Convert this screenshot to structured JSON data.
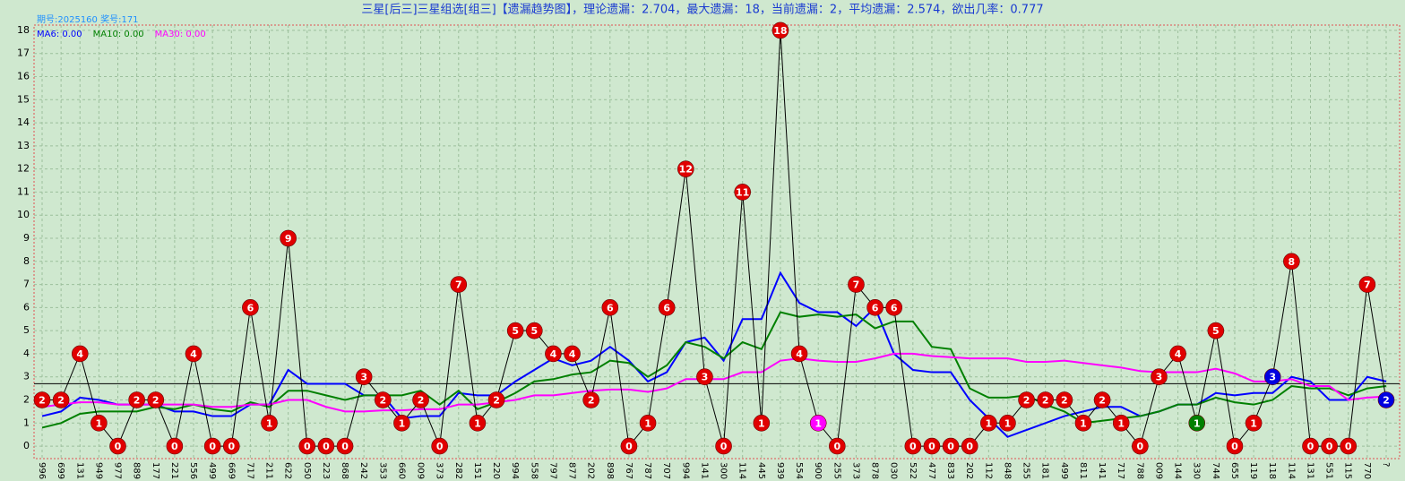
{
  "chart_data": {
    "type": "line",
    "title": "三星[后三]三星组选[组三]【遗漏趋势图】，理论遗漏：2.704，最大遗漏：18，当前遗漏：2，平均遗漏：2.574，欲出几率：0.777",
    "subtitle": "期号:2025160 奖号:171",
    "categories": [
      "996",
      "699",
      "131",
      "949",
      "977",
      "889",
      "177",
      "221",
      "556",
      "499",
      "669",
      "717",
      "211",
      "622",
      "050",
      "223",
      "868",
      "242",
      "353",
      "660",
      "009",
      "373",
      "282",
      "151",
      "220",
      "994",
      "558",
      "797",
      "877",
      "202",
      "898",
      "767",
      "787",
      "707",
      "994",
      "141",
      "300",
      "114",
      "445",
      "939",
      "554",
      "900",
      "255",
      "373",
      "878",
      "030",
      "522",
      "477",
      "833",
      "202",
      "112",
      "848",
      "255",
      "181",
      "499",
      "811",
      "141",
      "717",
      "788",
      "009",
      "144",
      "330",
      "744",
      "655",
      "119",
      "118",
      "114",
      "131",
      "551",
      "115",
      "770",
      "?"
    ],
    "values": [
      2,
      2,
      4,
      1,
      0,
      2,
      2,
      0,
      4,
      0,
      0,
      6,
      1,
      9,
      0,
      0,
      0,
      3,
      2,
      1,
      2,
      0,
      7,
      1,
      2,
      5,
      5,
      4,
      4,
      2,
      6,
      0,
      1,
      6,
      12,
      3,
      0,
      11,
      1,
      18,
      4,
      1,
      0,
      7,
      6,
      6,
      0,
      0,
      0,
      0,
      1,
      1,
      2,
      2,
      2,
      1,
      2,
      1,
      0,
      3,
      4,
      1,
      5,
      0,
      1,
      3,
      8,
      0,
      0,
      0,
      7,
      2
    ],
    "point_colors": [
      "#e00000",
      "#e00000",
      "#e00000",
      "#e00000",
      "#e00000",
      "#e00000",
      "#e00000",
      "#e00000",
      "#e00000",
      "#e00000",
      "#e00000",
      "#e00000",
      "#e00000",
      "#e00000",
      "#e00000",
      "#e00000",
      "#e00000",
      "#e00000",
      "#e00000",
      "#e00000",
      "#e00000",
      "#e00000",
      "#e00000",
      "#e00000",
      "#e00000",
      "#e00000",
      "#e00000",
      "#e00000",
      "#e00000",
      "#e00000",
      "#e00000",
      "#e00000",
      "#e00000",
      "#e00000",
      "#e00000",
      "#e00000",
      "#e00000",
      "#e00000",
      "#e00000",
      "#e00000",
      "#e00000",
      "#ff00ff",
      "#e00000",
      "#e00000",
      "#e00000",
      "#e00000",
      "#e00000",
      "#e00000",
      "#e00000",
      "#e00000",
      "#e00000",
      "#e00000",
      "#e00000",
      "#e00000",
      "#e00000",
      "#e00000",
      "#e00000",
      "#e00000",
      "#e00000",
      "#e00000",
      "#e00000",
      "#008000",
      "#e00000",
      "#e00000",
      "#e00000",
      "#0000e0",
      "#e00000",
      "#e00000",
      "#e00000",
      "#e00000",
      "#e00000",
      "#0000e0"
    ],
    "line_color": "#000000",
    "reference_value": 2.704,
    "series": [
      {
        "name": "MA6: 0.00",
        "color": "#0000ff",
        "values": [
          1.3,
          1.5,
          2.1,
          2.0,
          1.8,
          1.8,
          1.8,
          1.5,
          1.5,
          1.3,
          1.3,
          1.8,
          1.8,
          3.3,
          2.7,
          2.7,
          2.7,
          2.2,
          2.2,
          1.2,
          1.3,
          1.3,
          2.3,
          2.2,
          2.2,
          2.8,
          3.3,
          3.8,
          3.5,
          3.7,
          4.3,
          3.7,
          2.8,
          3.2,
          4.5,
          4.7,
          3.7,
          5.5,
          5.5,
          7.5,
          6.2,
          5.8,
          5.8,
          5.2,
          6.0,
          4.0,
          3.3,
          3.2,
          3.2,
          2.0,
          1.2,
          0.4,
          0.7,
          1.0,
          1.3,
          1.5,
          1.7,
          1.7,
          1.3,
          1.5,
          1.8,
          1.8,
          2.3,
          2.2,
          2.3,
          2.3,
          3.0,
          2.8,
          2.0,
          2.0,
          3.0,
          2.8
        ]
      },
      {
        "name": "MA10: 0.00",
        "color": "#008000",
        "values": [
          0.8,
          1.0,
          1.4,
          1.5,
          1.5,
          1.5,
          1.7,
          1.6,
          1.8,
          1.6,
          1.5,
          1.9,
          1.7,
          2.4,
          2.4,
          2.2,
          2.0,
          2.2,
          2.2,
          2.2,
          2.4,
          1.8,
          2.4,
          1.6,
          1.9,
          2.3,
          2.8,
          2.9,
          3.1,
          3.2,
          3.7,
          3.6,
          3.0,
          3.5,
          4.5,
          4.3,
          3.8,
          4.5,
          4.2,
          5.8,
          5.6,
          5.7,
          5.6,
          5.7,
          5.1,
          5.4,
          5.4,
          4.3,
          4.2,
          2.5,
          2.1,
          2.1,
          2.2,
          1.8,
          1.5,
          1.0,
          1.1,
          1.2,
          1.3,
          1.5,
          1.8,
          1.8,
          2.1,
          1.9,
          1.8,
          2.0,
          2.6,
          2.5,
          2.5,
          2.2,
          2.5,
          2.6
        ]
      },
      {
        "name": "MA30: 0.00",
        "color": "#ff00ff",
        "values": [
          1.7,
          1.8,
          1.9,
          1.9,
          1.8,
          1.8,
          1.8,
          1.8,
          1.8,
          1.7,
          1.7,
          1.8,
          1.8,
          2.0,
          2.0,
          1.7,
          1.5,
          1.5,
          1.55,
          1.55,
          1.6,
          1.6,
          1.8,
          1.8,
          1.9,
          2.0,
          2.2,
          2.2,
          2.3,
          2.4,
          2.45,
          2.45,
          2.35,
          2.5,
          2.9,
          2.9,
          2.9,
          3.2,
          3.2,
          3.7,
          3.8,
          3.7,
          3.65,
          3.65,
          3.8,
          4.0,
          4.0,
          3.9,
          3.85,
          3.8,
          3.8,
          3.8,
          3.65,
          3.65,
          3.7,
          3.6,
          3.5,
          3.4,
          3.25,
          3.2,
          3.2,
          3.2,
          3.35,
          3.15,
          2.8,
          2.8,
          2.9,
          2.6,
          2.6,
          2.0,
          2.1,
          2.15
        ]
      }
    ],
    "ylim": [
      -0.54,
      18.23
    ],
    "yticks": [
      0,
      1,
      2,
      3,
      4,
      5,
      6,
      7,
      8,
      9,
      10,
      11,
      12,
      13,
      14,
      15,
      16,
      17,
      18
    ],
    "grid": true
  }
}
